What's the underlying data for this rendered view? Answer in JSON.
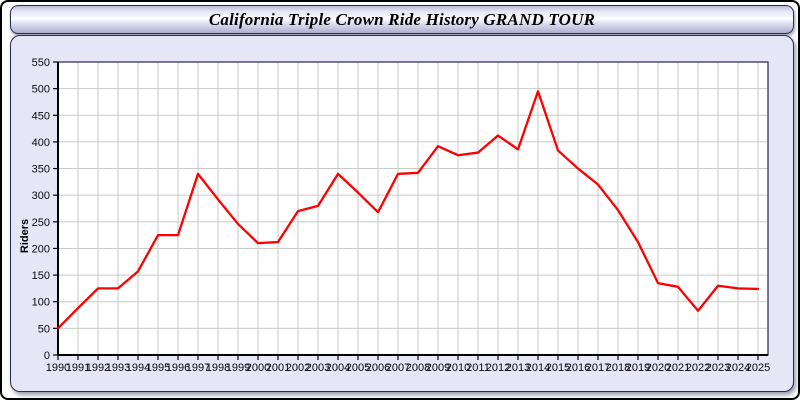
{
  "window": {
    "title": "California Triple Crown Ride History GRAND TOUR"
  },
  "chart_data": {
    "type": "line",
    "title": "California Triple Crown Ride History GRAND TOUR",
    "xlabel": "",
    "ylabel": "Riders",
    "x": [
      1990,
      1991,
      1992,
      1993,
      1994,
      1995,
      1996,
      1997,
      1998,
      1999,
      2000,
      2001,
      2002,
      2003,
      2004,
      2005,
      2006,
      2007,
      2008,
      2009,
      2010,
      2011,
      2012,
      2013,
      2014,
      2015,
      2016,
      2017,
      2018,
      2019,
      2020,
      2021,
      2022,
      2023,
      2024,
      2025
    ],
    "values": [
      50,
      88,
      125,
      125,
      157,
      225,
      225,
      340,
      292,
      246,
      210,
      212,
      270,
      280,
      340,
      305,
      268,
      340,
      342,
      392,
      375,
      380,
      412,
      386,
      495,
      384,
      350,
      320,
      272,
      212,
      135,
      128,
      83,
      130,
      125,
      124
    ],
    "ylim": [
      0,
      550
    ],
    "ytick_step": 50,
    "grid": true,
    "legend": "none",
    "line_color": "#ff0000",
    "plot_bg": "#ffffff",
    "grid_color": "#c9c9c9",
    "frame_color": "#26264d",
    "axis_color": "#000000",
    "label_color": "#0a0a14"
  }
}
